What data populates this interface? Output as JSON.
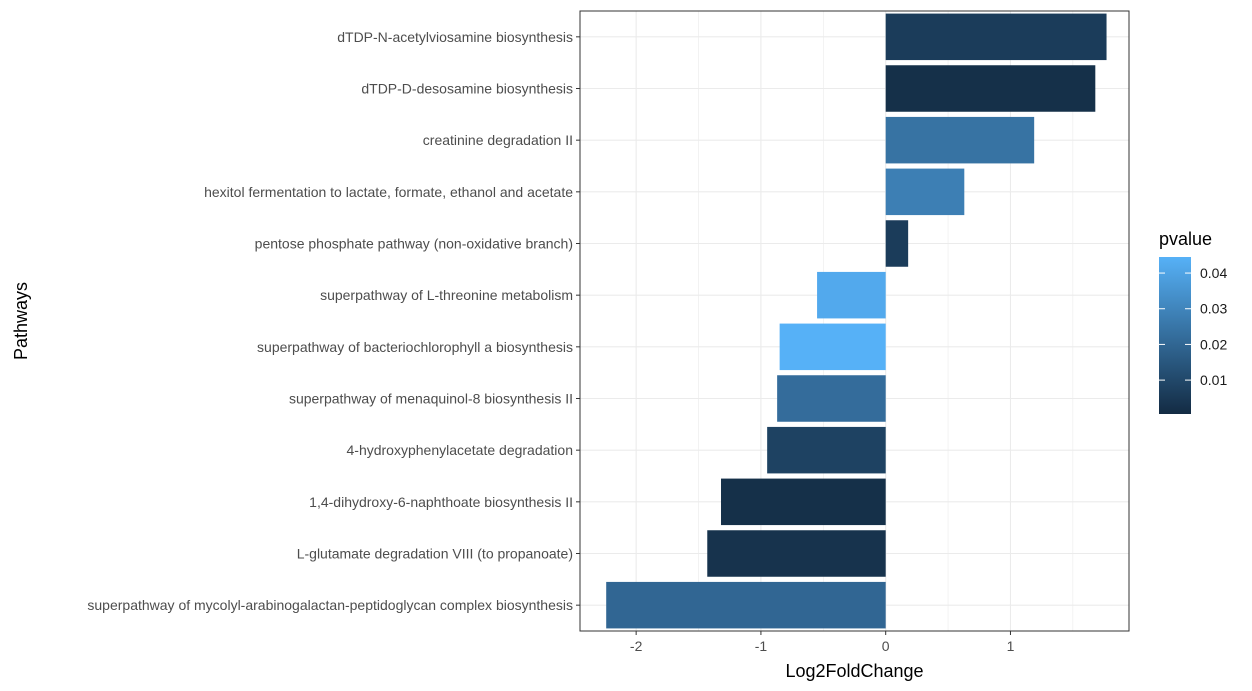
{
  "chart_data": {
    "type": "bar",
    "orientation": "horizontal",
    "xlabel": "Log2FoldChange",
    "ylabel": "Pathways",
    "xlim": [
      -2.45,
      1.95
    ],
    "xticks": [
      -2,
      -1,
      0,
      1
    ],
    "xtick_labels": [
      "-2",
      "-1",
      "0",
      "1"
    ],
    "grid": true,
    "categories": [
      "dTDP-N-acetylviosamine biosynthesis",
      "dTDP-D-desosamine biosynthesis",
      "creatinine degradation II",
      "hexitol fermentation to lactate, formate, ethanol and acetate",
      "pentose phosphate pathway (non-oxidative branch)",
      "superpathway of L-threonine metabolism",
      "superpathway of bacteriochlorophyll a biosynthesis",
      "superpathway of menaquinol-8 biosynthesis II",
      "4-hydroxyphenylacetate degradation",
      "1,4-dihydroxy-6-naphthoate biosynthesis II",
      "L-glutamate degradation VIII (to propanoate)",
      "superpathway of mycolyl-arabinogalactan-peptidoglycan complex biosynthesis"
    ],
    "values": [
      1.77,
      1.68,
      1.19,
      0.63,
      0.18,
      -0.55,
      -0.85,
      -0.87,
      -0.95,
      -1.32,
      -1.43,
      -2.24
    ],
    "pvalues": [
      0.006,
      0.002,
      0.024,
      0.028,
      0.006,
      0.042,
      0.045,
      0.022,
      0.008,
      0.002,
      0.003,
      0.02
    ],
    "legend": {
      "title": "pvalue",
      "position": "right",
      "range": [
        0.0005,
        0.0445
      ],
      "ticks": [
        0.01,
        0.02,
        0.03,
        0.04
      ],
      "tick_labels": [
        "0.01",
        "0.02",
        "0.03",
        "0.04"
      ],
      "low_color": "#132B43",
      "high_color": "#56B1F7"
    },
    "colors": {
      "grid": "#ebebeb",
      "panel_border": "#333333",
      "tick_text": "#4d4d4d"
    }
  }
}
